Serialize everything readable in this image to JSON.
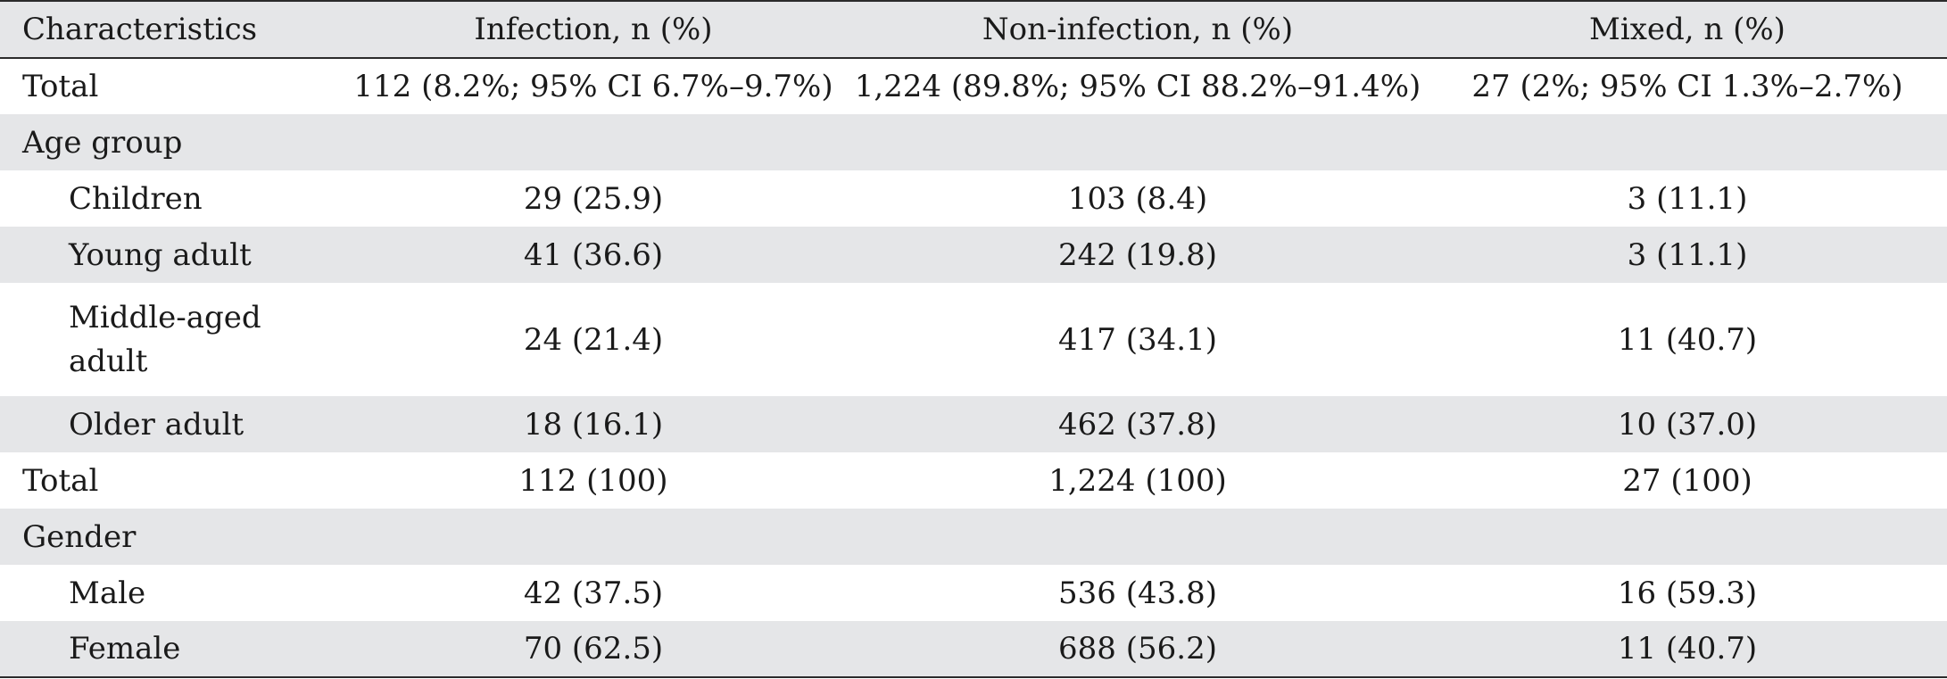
{
  "table": {
    "headers": [
      "Characteristics",
      "Infection, n (%)",
      "Non-infection, n (%)",
      "Mixed, n (%)"
    ],
    "rows": [
      {
        "label": "Total",
        "cells": [
          "112 (8.2%; 95% CI 6.7%–9.7%)",
          "1,224 (89.8%; 95% CI 88.2%–91.4%)",
          "27 (2%; 95% CI 1.3%–2.7%)"
        ]
      },
      {
        "label": "Age group",
        "cells": [
          "",
          "",
          ""
        ]
      },
      {
        "label": "Children",
        "cells": [
          "29 (25.9)",
          "103 (8.4)",
          "3 (11.1)"
        ]
      },
      {
        "label": "Young adult",
        "cells": [
          "41 (36.6)",
          "242 (19.8)",
          "3 (11.1)"
        ]
      },
      {
        "label": "Middle-aged adult",
        "cells": [
          "24 (21.4)",
          "417 (34.1)",
          "11 (40.7)"
        ]
      },
      {
        "label": "Older adult",
        "cells": [
          "18 (16.1)",
          "462 (37.8)",
          "10 (37.0)"
        ]
      },
      {
        "label": "Total",
        "cells": [
          "112 (100)",
          "1,224 (100)",
          "27 (100)"
        ]
      },
      {
        "label": "Gender",
        "cells": [
          "",
          "",
          ""
        ]
      },
      {
        "label": "Male",
        "cells": [
          "42 (37.5)",
          "536 (43.8)",
          "16 (59.3)"
        ]
      },
      {
        "label": "Female",
        "cells": [
          "70 (62.5)",
          "688 (56.2)",
          "11 (40.7)"
        ]
      }
    ]
  }
}
